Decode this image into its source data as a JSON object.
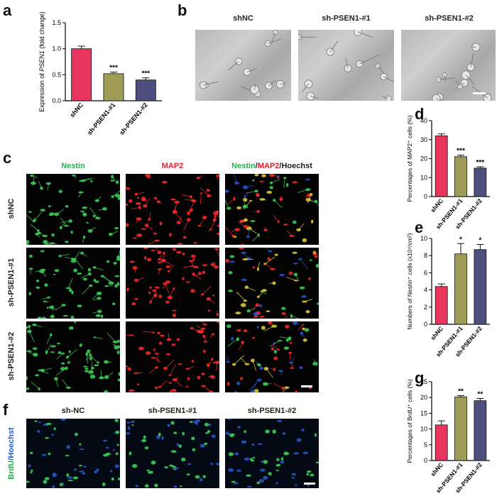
{
  "panels": {
    "a": "a",
    "b": "b",
    "c": "c",
    "d": "d",
    "e": "e",
    "f": "f",
    "g": "g"
  },
  "panel_b": {
    "columns": [
      "shNC",
      "sh-PSEN1-#1",
      "sh-PSEN1-#2"
    ]
  },
  "panel_c": {
    "col_nestin": "Nestin",
    "col_map2": "MAP2",
    "merge_nestin": "Nestin",
    "merge_sep1": "/",
    "merge_map2": "MAP2",
    "merge_sep2": "/",
    "merge_hoechst": "Hoechst",
    "rows": [
      "shNC",
      "sh-PSEN1-#1",
      "sh-PSEN1-#2"
    ],
    "colors": {
      "nestin": "#22b14c",
      "map2": "#e0202a",
      "hoechst": "#222222"
    }
  },
  "panel_f": {
    "columns": [
      "sh-NC",
      "sh-PSEN1-#1",
      "sh-PSEN1-#2"
    ],
    "row_brdu": "BrdU",
    "row_sep": "/",
    "row_hoechst": "Hoechst",
    "colors": {
      "brdu": "#22b14c",
      "hoechst": "#2060d0"
    }
  },
  "chart_data": [
    {
      "panel": "a",
      "type": "bar",
      "categories": [
        "shNC",
        "sh-PSEN1-#1",
        "sh-PSEN1-#2"
      ],
      "values": [
        1.0,
        0.52,
        0.4
      ],
      "errors": [
        0.05,
        0.03,
        0.04
      ],
      "significance": [
        "",
        "***",
        "***"
      ],
      "ylabel_prefix": "Expression of ",
      "ylabel_gene": "PSEN1",
      "ylabel_suffix": " (fold change)",
      "ylim": [
        0,
        1.5
      ],
      "yticks": [
        "0.0",
        "0.5",
        "1.0",
        "1.5"
      ],
      "colors": [
        "#e8355e",
        "#9f9c58",
        "#4e4f7c"
      ]
    },
    {
      "panel": "d",
      "type": "bar",
      "categories": [
        "shNC",
        "sh-PSEN1-#1",
        "sh-PSEN1-#2"
      ],
      "values": [
        32,
        21,
        15
      ],
      "errors": [
        1.0,
        0.8,
        0.7
      ],
      "significance": [
        "",
        "***",
        "***"
      ],
      "ylabel": "Percentages of MAP2⁺ cells (%)",
      "ylim": [
        0,
        40
      ],
      "yticks": [
        "0",
        "10",
        "20",
        "30",
        "40"
      ],
      "colors": [
        "#e8355e",
        "#9f9c58",
        "#4e4f7c"
      ]
    },
    {
      "panel": "e",
      "type": "bar",
      "categories": [
        "shNC",
        "sh-PSEN1-#1",
        "sh-PSEN1-#2"
      ],
      "values": [
        4.4,
        8.2,
        8.7
      ],
      "errors": [
        0.3,
        1.2,
        0.6
      ],
      "significance": [
        "",
        "*",
        "*"
      ],
      "ylabel": "Numbers of Nestin⁺ cells (x10⁴/cm²)",
      "ylim": [
        0,
        10
      ],
      "yticks": [
        "0",
        "2",
        "4",
        "6",
        "8",
        "10"
      ],
      "colors": [
        "#e8355e",
        "#9f9c58",
        "#4e4f7c"
      ]
    },
    {
      "panel": "g",
      "type": "bar",
      "categories": [
        "shNC",
        "sh-PSEN1-#1",
        "sh-PSEN1-#2"
      ],
      "values": [
        11.3,
        20.2,
        19.0
      ],
      "errors": [
        1.3,
        0.4,
        0.7
      ],
      "significance": [
        "",
        "**",
        "**"
      ],
      "ylabel": "Percentages of BrdU⁺ cells (%)",
      "ylim": [
        0,
        25
      ],
      "yticks": [
        "0",
        "5",
        "10",
        "15",
        "20",
        "25"
      ],
      "colors": [
        "#e8355e",
        "#9f9c58",
        "#4e4f7c"
      ]
    }
  ]
}
